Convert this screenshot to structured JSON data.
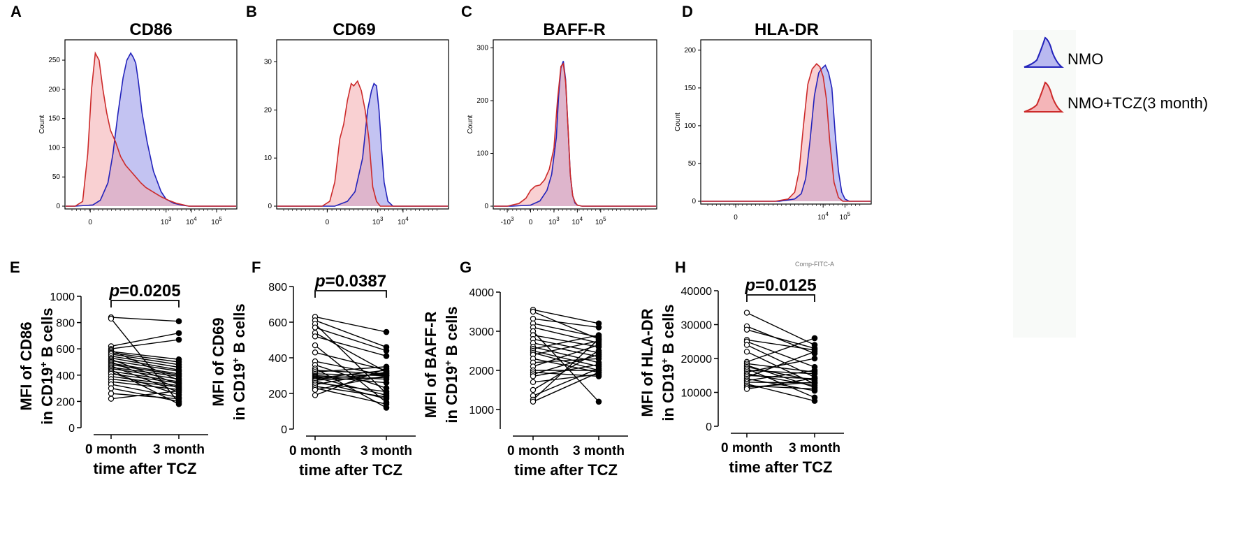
{
  "legend": {
    "items": [
      {
        "label": "NMO",
        "fill": "#b9b9f0",
        "stroke": "#2222bb"
      },
      {
        "label": "NMO+TCZ(3 month)",
        "fill": "#f4b5b8",
        "stroke": "#cc2a2a"
      }
    ]
  },
  "chart_data": [
    {
      "panel": "A",
      "type": "area",
      "title": "CD86",
      "ylabel": "Count",
      "ylim": [
        0,
        280
      ],
      "yticks": [
        "0",
        "50",
        "100",
        "150",
        "200",
        "250"
      ],
      "xlim": [
        -1.0,
        5.8
      ],
      "xticks": [
        {
          "v": 0,
          "label": "0"
        },
        {
          "v": 3,
          "label": "10^3"
        },
        {
          "v": 4,
          "label": "10^4"
        },
        {
          "v": 5,
          "label": "10^5"
        }
      ],
      "series": [
        {
          "name": "NMO",
          "x": [
            -0.6,
            0.1,
            0.4,
            0.7,
            0.9,
            1.1,
            1.3,
            1.45,
            1.6,
            1.7,
            1.8,
            1.9,
            2.05,
            2.25,
            2.5,
            2.8,
            3.0,
            3.3,
            3.6,
            3.9
          ],
          "y": [
            0,
            2,
            10,
            40,
            90,
            160,
            220,
            250,
            262,
            255,
            245,
            215,
            160,
            110,
            60,
            25,
            12,
            5,
            2,
            0
          ]
        },
        {
          "name": "NMO+TCZ(3 month)",
          "x": [
            -0.6,
            -0.3,
            -0.1,
            0.05,
            0.2,
            0.35,
            0.5,
            0.65,
            0.8,
            1.0,
            1.2,
            1.4,
            1.6,
            1.8,
            2.0,
            2.2,
            2.5,
            2.8,
            3.1,
            3.4,
            3.7,
            3.9
          ],
          "y": [
            0,
            8,
            90,
            200,
            262,
            250,
            200,
            160,
            130,
            110,
            85,
            70,
            60,
            50,
            40,
            32,
            24,
            16,
            10,
            5,
            2,
            0
          ]
        }
      ]
    },
    {
      "panel": "B",
      "type": "area",
      "title": "CD69",
      "ylabel": "",
      "ylim": [
        0,
        34
      ],
      "yticks": [
        "0",
        "10",
        "20",
        "30"
      ],
      "xlim": [
        -1.0,
        5.8
      ],
      "xticks": [
        {
          "v": 1,
          "label": "0"
        },
        {
          "v": 3,
          "label": "10^3"
        },
        {
          "v": 4,
          "label": "10^4"
        }
      ],
      "series": [
        {
          "name": "NMO",
          "x": [
            -0.3,
            1.3,
            1.8,
            2.1,
            2.4,
            2.6,
            2.75,
            2.85,
            2.95,
            3.05,
            3.15,
            3.25,
            3.4,
            3.6,
            4.0
          ],
          "y": [
            0,
            0,
            1,
            3,
            10,
            20,
            24,
            25.5,
            25,
            20,
            12,
            5,
            1,
            0,
            0
          ]
        },
        {
          "name": "NMO+TCZ(3 month)",
          "x": [
            -0.3,
            0.8,
            1.1,
            1.3,
            1.5,
            1.65,
            1.8,
            1.95,
            2.05,
            2.2,
            2.35,
            2.5,
            2.65,
            2.8,
            2.95,
            3.1,
            3.4
          ],
          "y": [
            0,
            0,
            1,
            5,
            14,
            17,
            22,
            25.5,
            25,
            26,
            24,
            20,
            14,
            4,
            1,
            0,
            0
          ]
        }
      ]
    },
    {
      "panel": "C",
      "type": "area",
      "title": "BAFF-R",
      "ylabel": "Count",
      "ylim": [
        0,
        310
      ],
      "yticks": [
        "0",
        "100",
        "200",
        "300"
      ],
      "xlim": [
        -1.6,
        5.4
      ],
      "xticks": [
        {
          "v": -1,
          "label": "-10^3"
        },
        {
          "v": 0,
          "label": "0"
        },
        {
          "v": 1,
          "label": "10^3"
        },
        {
          "v": 2,
          "label": "10^4"
        },
        {
          "v": 3,
          "label": "10^5"
        }
      ],
      "series": [
        {
          "name": "NMO",
          "x": [
            -0.8,
            0.0,
            0.4,
            0.7,
            0.9,
            1.1,
            1.2,
            1.3,
            1.4,
            1.5,
            1.6,
            1.7,
            1.8,
            1.9,
            2.0,
            2.2
          ],
          "y": [
            0,
            2,
            10,
            30,
            60,
            130,
            210,
            262,
            275,
            240,
            150,
            60,
            20,
            6,
            2,
            0
          ]
        },
        {
          "name": "NMO+TCZ(3 month)",
          "x": [
            -1.0,
            -0.5,
            -0.2,
            0.0,
            0.2,
            0.4,
            0.6,
            0.8,
            1.0,
            1.15,
            1.3,
            1.4,
            1.5,
            1.6,
            1.7,
            1.8,
            1.9,
            2.0,
            2.2
          ],
          "y": [
            0,
            5,
            15,
            30,
            38,
            40,
            50,
            70,
            110,
            200,
            265,
            270,
            235,
            150,
            60,
            20,
            8,
            2,
            0
          ]
        }
      ]
    },
    {
      "panel": "D",
      "type": "area",
      "title": "HLA-DR",
      "ylabel": "Count",
      "ylim": [
        0,
        210
      ],
      "yticks": [
        "0",
        "50",
        "100",
        "150",
        "200"
      ],
      "xlim": [
        -1.6,
        6.2
      ],
      "xticks": [
        {
          "v": 0,
          "label": "0"
        },
        {
          "v": 4,
          "label": "10^4"
        },
        {
          "v": 5,
          "label": "10^5"
        }
      ],
      "series": [
        {
          "name": "NMO",
          "x": [
            2.0,
            2.7,
            3.0,
            3.2,
            3.4,
            3.6,
            3.8,
            3.95,
            4.1,
            4.25,
            4.4,
            4.55,
            4.7,
            4.85,
            5.0,
            5.2
          ],
          "y": [
            0,
            3,
            10,
            30,
            80,
            140,
            170,
            176,
            180,
            170,
            150,
            90,
            40,
            12,
            3,
            0
          ]
        },
        {
          "name": "NMO+TCZ(3 month)",
          "x": [
            1.8,
            2.4,
            2.7,
            2.9,
            3.1,
            3.3,
            3.5,
            3.7,
            3.85,
            4.0,
            4.15,
            4.3,
            4.5,
            4.7,
            4.9
          ],
          "y": [
            0,
            3,
            12,
            40,
            100,
            155,
            175,
            182,
            178,
            165,
            135,
            80,
            25,
            5,
            0
          ]
        }
      ]
    },
    {
      "panel": "E",
      "type": "scatter",
      "ylabel_lines": [
        "MFI of CD86",
        "in CD19⁺ B cells"
      ],
      "ylim": [
        0,
        1000
      ],
      "yticks": [
        "0",
        "200",
        "400",
        "600",
        "800",
        "1000"
      ],
      "categories": [
        "0 month",
        "3 month"
      ],
      "xlabel": "time after TCZ",
      "pvalue": "=0.0205",
      "p_letter": "p",
      "pairs": [
        [
          840,
          810
        ],
        [
          830,
          190
        ],
        [
          620,
          720
        ],
        [
          600,
          670
        ],
        [
          590,
          360
        ],
        [
          580,
          520
        ],
        [
          570,
          500
        ],
        [
          560,
          480
        ],
        [
          545,
          460
        ],
        [
          530,
          440
        ],
        [
          520,
          330
        ],
        [
          510,
          430
        ],
        [
          500,
          300
        ],
        [
          490,
          410
        ],
        [
          480,
          400
        ],
        [
          470,
          270
        ],
        [
          460,
          390
        ],
        [
          450,
          370
        ],
        [
          440,
          180
        ],
        [
          430,
          350
        ],
        [
          420,
          250
        ],
        [
          410,
          340
        ],
        [
          390,
          320
        ],
        [
          370,
          310
        ],
        [
          350,
          290
        ],
        [
          330,
          230
        ],
        [
          300,
          200
        ],
        [
          260,
          220
        ],
        [
          220,
          280
        ]
      ]
    },
    {
      "panel": "F",
      "type": "scatter",
      "ylabel_lines": [
        "MFI of CD69",
        "in CD19⁺ B cells"
      ],
      "ylim": [
        0,
        800
      ],
      "yticks": [
        "0",
        "200",
        "400",
        "600",
        "800"
      ],
      "categories": [
        "0 month",
        "3 month"
      ],
      "xlabel": "time after TCZ",
      "pvalue": "=0.0387",
      "p_letter": "p",
      "pairs": [
        [
          630,
          545
        ],
        [
          610,
          460
        ],
        [
          590,
          200
        ],
        [
          570,
          440
        ],
        [
          540,
          320
        ],
        [
          520,
          410
        ],
        [
          470,
          150
        ],
        [
          430,
          330
        ],
        [
          380,
          300
        ],
        [
          360,
          230
        ],
        [
          340,
          120
        ],
        [
          330,
          310
        ],
        [
          320,
          350
        ],
        [
          310,
          300
        ],
        [
          300,
          280
        ],
        [
          295,
          260
        ],
        [
          290,
          190
        ],
        [
          285,
          330
        ],
        [
          280,
          310
        ],
        [
          275,
          290
        ],
        [
          270,
          170
        ],
        [
          260,
          210
        ],
        [
          250,
          320
        ],
        [
          240,
          180
        ],
        [
          230,
          140
        ],
        [
          220,
          300
        ],
        [
          190,
          340
        ]
      ]
    },
    {
      "panel": "G",
      "type": "scatter",
      "ylabel_lines": [
        "MFI of BAFF-R",
        "in CD19⁺ B cells"
      ],
      "ylim": [
        500,
        4000
      ],
      "yticks": [
        "1000",
        "2000",
        "3000",
        "4000"
      ],
      "categories": [
        "0 month",
        "3 month"
      ],
      "xlabel": "time after TCZ",
      "pvalue": "",
      "p_letter": "",
      "pairs": [
        [
          3550,
          3200
        ],
        [
          3500,
          2800
        ],
        [
          3320,
          3100
        ],
        [
          3200,
          2850
        ],
        [
          3100,
          2700
        ],
        [
          3000,
          1200
        ],
        [
          2900,
          2600
        ],
        [
          2800,
          2450
        ],
        [
          2700,
          2350
        ],
        [
          2600,
          2200
        ],
        [
          2550,
          2900
        ],
        [
          2500,
          2100
        ],
        [
          2450,
          2000
        ],
        [
          2400,
          2750
        ],
        [
          2300,
          1950
        ],
        [
          2200,
          2300
        ],
        [
          2100,
          2650
        ],
        [
          2000,
          2000
        ],
        [
          1950,
          1850
        ],
        [
          1900,
          2400
        ],
        [
          1850,
          2150
        ],
        [
          1700,
          1900
        ],
        [
          1500,
          2500
        ],
        [
          1350,
          2050
        ],
        [
          1250,
          2800
        ],
        [
          1200,
          1950
        ]
      ]
    },
    {
      "panel": "H",
      "type": "scatter",
      "ylabel_lines": [
        "MFI of HLA-DR",
        "in CD19⁺ B cells"
      ],
      "ylim": [
        0,
        40000
      ],
      "yticks": [
        "0",
        "10000",
        "20000",
        "30000",
        "40000"
      ],
      "categories": [
        "0 month",
        "3 month"
      ],
      "xlabel": "time after TCZ",
      "pvalue": "=0.0125",
      "p_letter": "p",
      "pairs": [
        [
          33500,
          24000
        ],
        [
          29500,
          21500
        ],
        [
          28500,
          23000
        ],
        [
          25500,
          22500
        ],
        [
          25000,
          17500
        ],
        [
          24000,
          14500
        ],
        [
          22000,
          12500
        ],
        [
          19000,
          26000
        ],
        [
          18500,
          16000
        ],
        [
          18000,
          11500
        ],
        [
          17500,
          13500
        ],
        [
          17000,
          8500
        ],
        [
          16500,
          15500
        ],
        [
          16000,
          20000
        ],
        [
          15500,
          12000
        ],
        [
          15000,
          14000
        ],
        [
          14500,
          22000
        ],
        [
          14000,
          10500
        ],
        [
          13500,
          16500
        ],
        [
          13000,
          12800
        ],
        [
          12500,
          7500
        ],
        [
          12000,
          11000
        ],
        [
          11500,
          13000
        ],
        [
          11000,
          14200
        ]
      ]
    }
  ]
}
